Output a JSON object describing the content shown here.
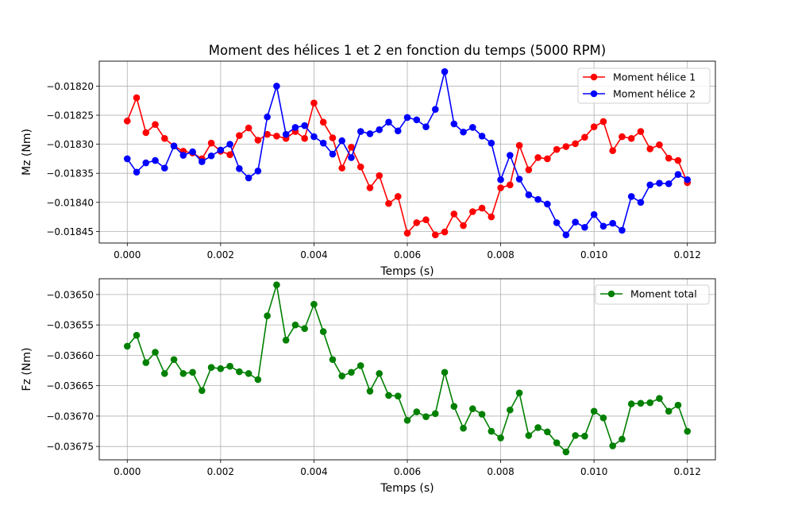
{
  "chart_data": [
    {
      "type": "line",
      "title": "Moment des hélices 1 et 2 en fonction du temps (5000 RPM)",
      "xlabel": "Temps (s)",
      "ylabel": "Mz (Nm)",
      "xlim": [
        -0.0006,
        0.0126
      ],
      "ylim": [
        -0.01847,
        -0.018157
      ],
      "grid": true,
      "legend_position": "top-right",
      "x_ticks": [
        0,
        0.002,
        0.004,
        0.006,
        0.008,
        0.01,
        0.012
      ],
      "x_tick_labels": [
        "0.000",
        "0.002",
        "0.004",
        "0.006",
        "0.008",
        "0.010",
        "0.012"
      ],
      "y_ticks": [
        -0.01845,
        -0.0184,
        -0.01835,
        -0.0183,
        -0.01825,
        -0.0182
      ],
      "y_tick_labels": [
        "−0.01845",
        "−0.01840",
        "−0.01835",
        "−0.01830",
        "−0.01825",
        "−0.01820"
      ],
      "x": [
        0,
        0.0002,
        0.0004,
        0.0006,
        0.0008,
        0.001,
        0.0012,
        0.0014,
        0.0016,
        0.0018,
        0.002,
        0.0022,
        0.0024,
        0.0026,
        0.0028,
        0.003,
        0.0032,
        0.0034,
        0.0036,
        0.0038,
        0.004,
        0.0042,
        0.0044,
        0.0046,
        0.0048,
        0.005,
        0.0052,
        0.0054,
        0.0056,
        0.0058,
        0.006,
        0.0062,
        0.0064,
        0.0066,
        0.0068,
        0.007,
        0.0072,
        0.0074,
        0.0076,
        0.0078,
        0.008,
        0.0082,
        0.0084,
        0.0086,
        0.0088,
        0.009,
        0.0092,
        0.0094,
        0.0096,
        0.0098,
        0.01,
        0.0102,
        0.0104,
        0.0106,
        0.0108,
        0.011,
        0.0112,
        0.0114,
        0.0116,
        0.0118,
        0.012
      ],
      "series": [
        {
          "name": "Moment hélice 1",
          "color": "#ff0000",
          "values": [
            -0.01826,
            -0.01822,
            -0.01828,
            -0.018266,
            -0.01829,
            -0.018303,
            -0.018312,
            -0.018315,
            -0.018325,
            -0.018298,
            -0.018312,
            -0.018318,
            -0.018285,
            -0.018272,
            -0.018293,
            -0.018283,
            -0.018286,
            -0.01829,
            -0.018278,
            -0.01829,
            -0.018229,
            -0.018262,
            -0.018289,
            -0.018341,
            -0.018305,
            -0.018339,
            -0.018375,
            -0.018354,
            -0.018402,
            -0.01839,
            -0.018453,
            -0.018435,
            -0.01843,
            -0.018456,
            -0.018451,
            -0.01842,
            -0.01844,
            -0.018416,
            -0.01841,
            -0.018425,
            -0.018375,
            -0.01837,
            -0.018302,
            -0.018344,
            -0.018323,
            -0.018325,
            -0.018309,
            -0.018304,
            -0.018299,
            -0.018288,
            -0.01827,
            -0.018261,
            -0.018311,
            -0.018287,
            -0.01829,
            -0.018278,
            -0.018308,
            -0.018301,
            -0.018324,
            -0.018328,
            -0.018366
          ]
        },
        {
          "name": "Moment hélice 2",
          "color": "#0000ff",
          "values": [
            -0.018325,
            -0.018348,
            -0.018332,
            -0.018328,
            -0.018341,
            -0.018303,
            -0.018319,
            -0.018313,
            -0.01833,
            -0.01832,
            -0.01831,
            -0.0183,
            -0.018342,
            -0.018358,
            -0.018346,
            -0.018253,
            -0.0182,
            -0.018283,
            -0.018271,
            -0.018268,
            -0.018287,
            -0.018298,
            -0.018317,
            -0.018294,
            -0.018323,
            -0.018278,
            -0.018282,
            -0.018275,
            -0.018262,
            -0.018277,
            -0.018254,
            -0.018258,
            -0.01827,
            -0.01824,
            -0.018175,
            -0.018265,
            -0.018279,
            -0.018271,
            -0.018286,
            -0.018298,
            -0.018361,
            -0.018319,
            -0.01836,
            -0.018387,
            -0.018395,
            -0.018403,
            -0.018435,
            -0.018456,
            -0.018434,
            -0.018443,
            -0.018421,
            -0.018441,
            -0.018436,
            -0.018448,
            -0.01839,
            -0.0184,
            -0.01837,
            -0.018367,
            -0.018368,
            -0.018352,
            -0.018361
          ]
        }
      ]
    },
    {
      "type": "line",
      "title": "",
      "xlabel": "Temps (s)",
      "ylabel": "Fz (Nm)",
      "xlim": [
        -0.0006,
        0.0126
      ],
      "ylim": [
        -0.036772,
        -0.036474
      ],
      "grid": true,
      "legend_position": "top-right",
      "x_ticks": [
        0,
        0.002,
        0.004,
        0.006,
        0.008,
        0.01,
        0.012
      ],
      "x_tick_labels": [
        "0.000",
        "0.002",
        "0.004",
        "0.006",
        "0.008",
        "0.010",
        "0.012"
      ],
      "y_ticks": [
        -0.03675,
        -0.0367,
        -0.03665,
        -0.0366,
        -0.03655,
        -0.0365
      ],
      "y_tick_labels": [
        "−0.03675",
        "−0.03670",
        "−0.03665",
        "−0.03660",
        "−0.03655",
        "−0.03650"
      ],
      "x": [
        0,
        0.0002,
        0.0004,
        0.0006,
        0.0008,
        0.001,
        0.0012,
        0.0014,
        0.0016,
        0.0018,
        0.002,
        0.0022,
        0.0024,
        0.0026,
        0.0028,
        0.003,
        0.0032,
        0.0034,
        0.0036,
        0.0038,
        0.004,
        0.0042,
        0.0044,
        0.0046,
        0.0048,
        0.005,
        0.0052,
        0.0054,
        0.0056,
        0.0058,
        0.006,
        0.0062,
        0.0064,
        0.0066,
        0.0068,
        0.007,
        0.0072,
        0.0074,
        0.0076,
        0.0078,
        0.008,
        0.0082,
        0.0084,
        0.0086,
        0.0088,
        0.009,
        0.0092,
        0.0094,
        0.0096,
        0.0098,
        0.01,
        0.0102,
        0.0104,
        0.0106,
        0.0108,
        0.011,
        0.0112,
        0.0114,
        0.0116,
        0.0118,
        0.012
      ],
      "series": [
        {
          "name": "Moment total",
          "color": "#008000",
          "values": [
            -0.036585,
            -0.036567,
            -0.036612,
            -0.036595,
            -0.03663,
            -0.036607,
            -0.03663,
            -0.036628,
            -0.036658,
            -0.03662,
            -0.036622,
            -0.036618,
            -0.036627,
            -0.03663,
            -0.03664,
            -0.036535,
            -0.036484,
            -0.036575,
            -0.03655,
            -0.036556,
            -0.036516,
            -0.036561,
            -0.036607,
            -0.036634,
            -0.036628,
            -0.036617,
            -0.036659,
            -0.03663,
            -0.036666,
            -0.036667,
            -0.036707,
            -0.036693,
            -0.036701,
            -0.036696,
            -0.036628,
            -0.036684,
            -0.03672,
            -0.036688,
            -0.036697,
            -0.036725,
            -0.036736,
            -0.03669,
            -0.036662,
            -0.036732,
            -0.036719,
            -0.036726,
            -0.036744,
            -0.036759,
            -0.036732,
            -0.036733,
            -0.036692,
            -0.036703,
            -0.036749,
            -0.036738,
            -0.03668,
            -0.036679,
            -0.036678,
            -0.036671,
            -0.036692,
            -0.036682,
            -0.036725
          ]
        }
      ]
    }
  ]
}
